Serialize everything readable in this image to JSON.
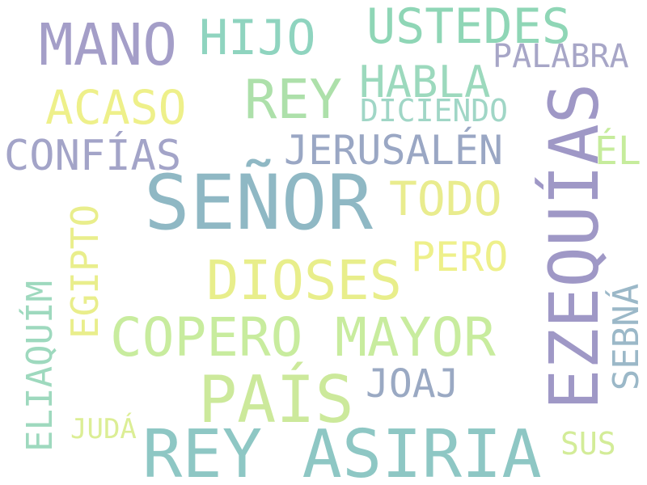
{
  "words": [
    {
      "text": "SEÑOR",
      "color": "#8fb8c4"
    },
    {
      "text": "REY ASIRIA",
      "color": "#8ec7c4"
    },
    {
      "text": "EZEQUÍAS",
      "color": "#9f98c6"
    },
    {
      "text": "PAÍS",
      "color": "#cce99b"
    },
    {
      "text": "MANO",
      "color": "#a49ec8"
    },
    {
      "text": "COPERO MAYOR",
      "color": "#c8ec9e"
    },
    {
      "text": "DIOSES",
      "color": "#e8ee8b"
    },
    {
      "text": "REY",
      "color": "#ade0aa"
    },
    {
      "text": "USTEDES",
      "color": "#8fd6b6"
    },
    {
      "text": "HIJO",
      "color": "#8fd4bf"
    },
    {
      "text": "ACASO",
      "color": "#eef08a"
    },
    {
      "text": "CONFÍAS",
      "color": "#a3a4c8"
    },
    {
      "text": "HABLA",
      "color": "#9cd9bd"
    },
    {
      "text": "JERUSALÉN",
      "color": "#9aa7c4"
    },
    {
      "text": "TODO",
      "color": "#e9ec8e"
    },
    {
      "text": "PERO",
      "color": "#eef08a"
    },
    {
      "text": "EGIPTO",
      "color": "#e9ee8c"
    },
    {
      "text": "ELIAQUÍM",
      "color": "#9ed9be"
    },
    {
      "text": "SEBNÁ",
      "color": "#9bb8c8"
    },
    {
      "text": "JOAJ",
      "color": "#9aa9c3"
    },
    {
      "text": "PALABRA",
      "color": "#a7a6c7"
    },
    {
      "text": "DICIENDO",
      "color": "#a0d6c6"
    },
    {
      "text": "ÉL",
      "color": "#c6ec9c"
    },
    {
      "text": "JUDÁ",
      "color": "#dcee95"
    },
    {
      "text": "SUS",
      "color": "#d3ec98"
    }
  ]
}
